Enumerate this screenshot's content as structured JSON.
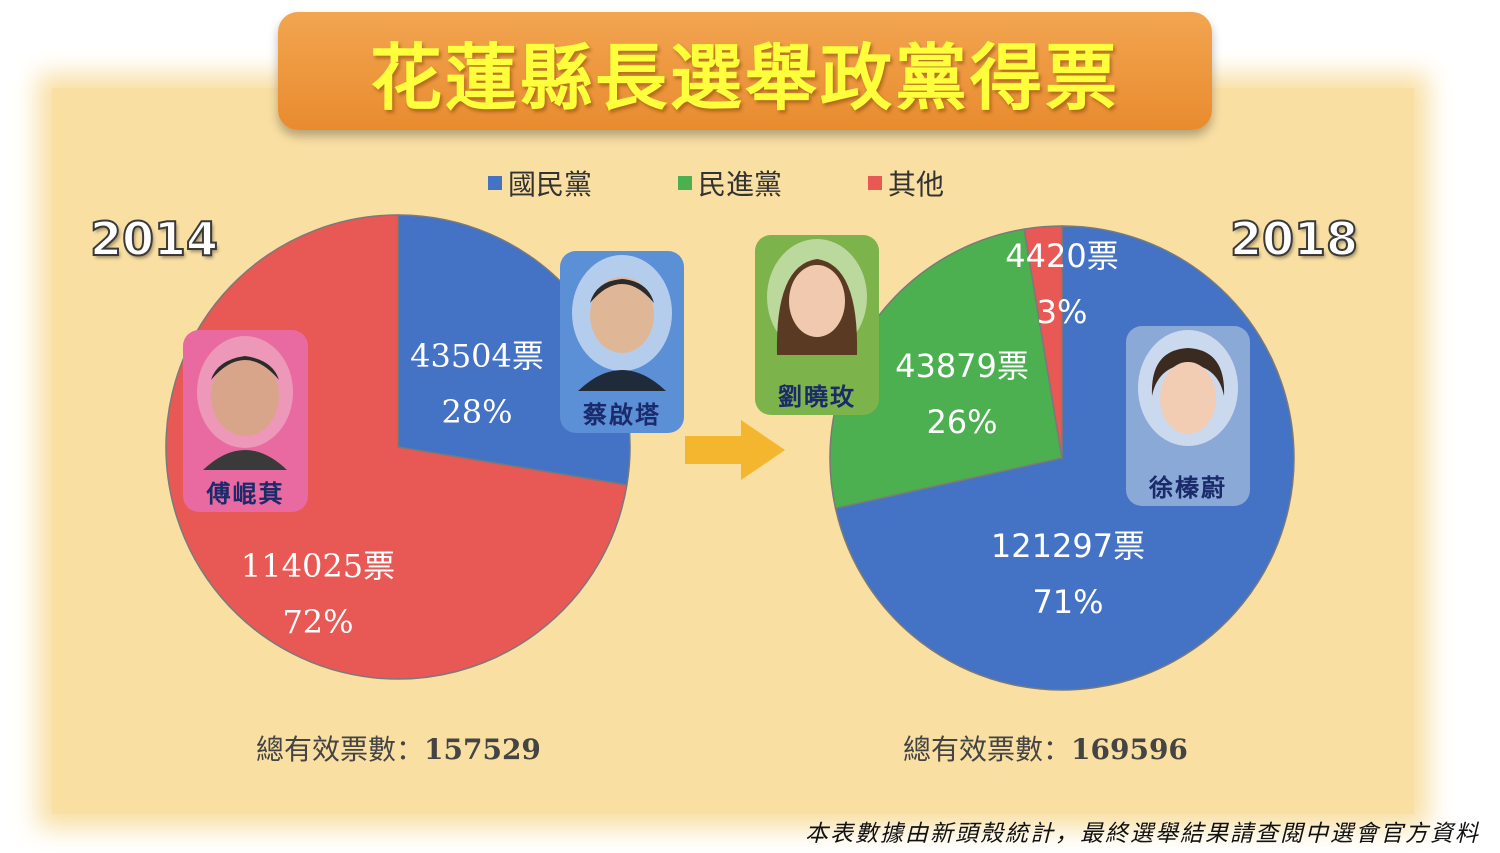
{
  "title": "花蓮縣長選舉政黨得票",
  "legend": [
    {
      "label": "國民黨",
      "color": "#4472c4"
    },
    {
      "label": "民進黨",
      "color": "#4caf50"
    },
    {
      "label": "其他",
      "color": "#e85855"
    }
  ],
  "chart_data": [
    {
      "type": "pie",
      "year": "2014",
      "slices": [
        {
          "party": "國民黨",
          "votes": 43504,
          "percent": 28,
          "color": "#4472c4",
          "votes_label": "43504票",
          "percent_label": "28%"
        },
        {
          "party": "其他",
          "votes": 114025,
          "percent": 72,
          "color": "#e85855",
          "votes_label": "114025票",
          "percent_label": "72%"
        }
      ],
      "total_label": "總有效票數：",
      "total": "157529",
      "candidates": [
        {
          "name": "蔡啟塔",
          "party": "國民黨"
        },
        {
          "name": "傅崐萁",
          "party": "其他"
        }
      ]
    },
    {
      "type": "pie",
      "year": "2018",
      "slices": [
        {
          "party": "國民黨",
          "votes": 121297,
          "percent": 71,
          "color": "#4472c4",
          "votes_label": "121297票",
          "percent_label": "71%"
        },
        {
          "party": "民進黨",
          "votes": 43879,
          "percent": 26,
          "color": "#4caf50",
          "votes_label": "43879票",
          "percent_label": "26%"
        },
        {
          "party": "其他",
          "votes": 4420,
          "percent": 3,
          "color": "#e85855",
          "votes_label": "4420票",
          "percent_label": "3%"
        }
      ],
      "total_label": "總有效票數：",
      "total": "169596",
      "candidates": [
        {
          "name": "劉曉玫",
          "party": "民進黨"
        },
        {
          "name": "徐榛蔚",
          "party": "國民黨"
        }
      ]
    }
  ],
  "footnote": "本表數據由新頭殼統計，最終選舉結果請查閱中選會官方資料"
}
